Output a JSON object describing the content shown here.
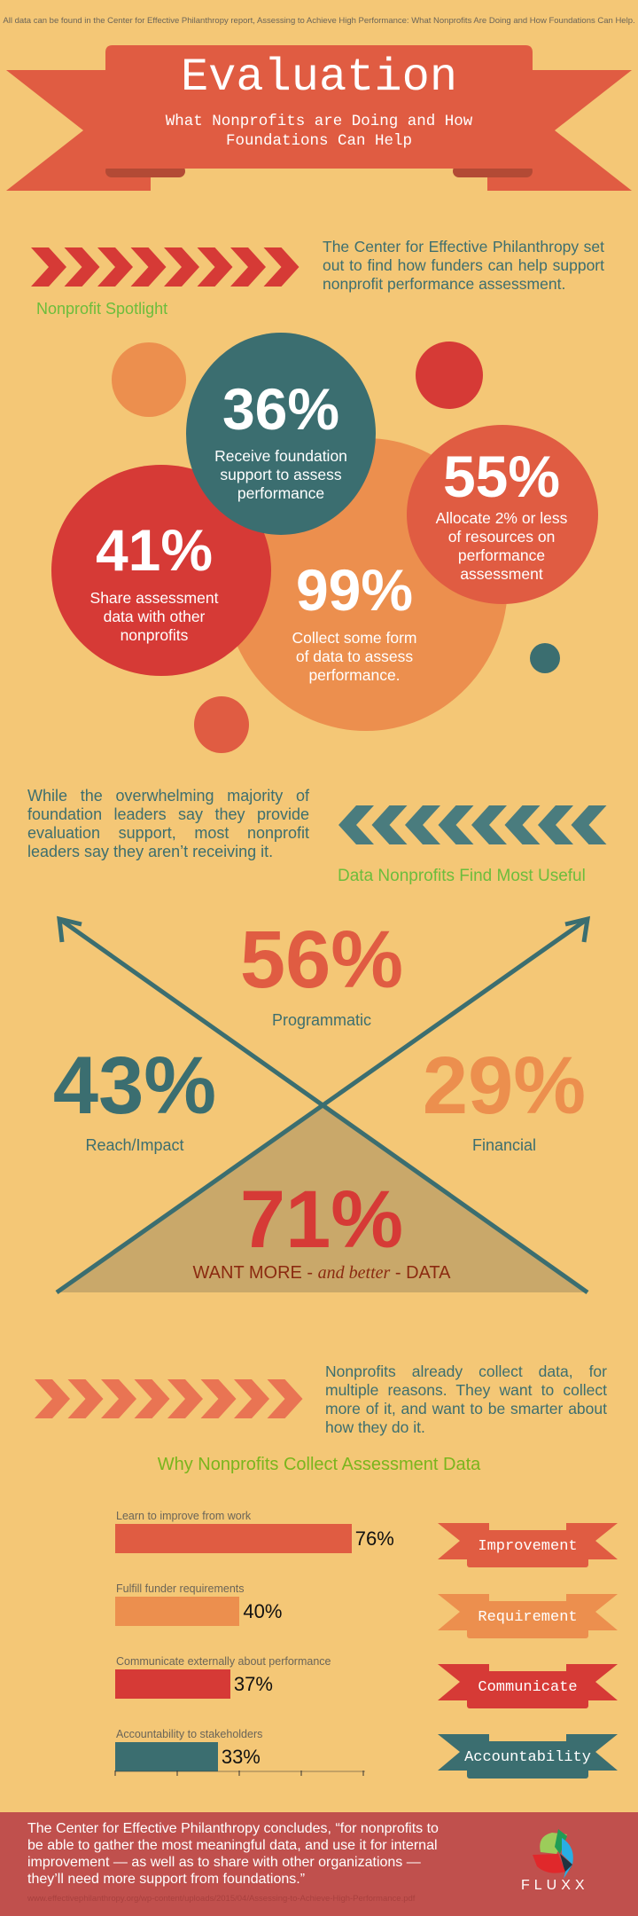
{
  "header": {
    "source_note": "All data can be found in the Center for Effective Philanthropy report, Assessing to Achieve High Performance: What Nonprofits Are Doing and How Foundations Can Help.",
    "title": "Evaluation",
    "subtitle_line1": "What Nonprofits are Doing and How",
    "subtitle_line2": "Foundations Can Help"
  },
  "spotlight": {
    "intro": "The Center for Effective Philanthropy set out to find how funders can help support nonprofit performance assessment.",
    "heading": "Nonprofit Spotlight",
    "stats": [
      {
        "value": "36%",
        "lines": [
          "Receive foundation",
          "support to assess",
          "performance"
        ]
      },
      {
        "value": "41%",
        "lines": [
          "Share assessment",
          "data with other",
          "nonprofits"
        ]
      },
      {
        "value": "99%",
        "lines": [
          "Collect some form",
          "of data to assess",
          "performance."
        ]
      },
      {
        "value": "55%",
        "lines": [
          "Allocate 2% or less",
          "of resources on",
          "performance",
          "assessment"
        ]
      }
    ]
  },
  "useful": {
    "intro": "While the overwhelming majority of foundation leaders say they provide evaluation support, most nonprofit leaders say they aren’t receiving it.",
    "heading": "Data Nonprofits Find Most Useful",
    "items": [
      {
        "value": "56%",
        "label": "Programmatic"
      },
      {
        "value": "43%",
        "label": "Reach/Impact"
      },
      {
        "value": "29%",
        "label": "Financial"
      }
    ],
    "want_value": "71%",
    "want_a": "WANT MORE",
    "want_b": " - ",
    "want_c": "and better",
    "want_d": " - DATA"
  },
  "collect": {
    "intro": "Nonprofits already collect data, for multiple reasons. They want to collect more of it, and want to be smarter about how they do it.",
    "heading": "Why Nonprofits Collect Assessment Data",
    "bars": [
      {
        "label": "Learn to improve from work",
        "value": 76,
        "display": "76%",
        "color": "#e05c42",
        "tag": "Improvement"
      },
      {
        "label": "Fulfill funder requirements",
        "value": 40,
        "display": "40%",
        "color": "#ec8f4e",
        "tag": "Requirement"
      },
      {
        "label": "Communicate externally about performance",
        "value": 37,
        "display": "37%",
        "color": "#d63a36",
        "tag": "Communicate"
      },
      {
        "label": "Accountability to stakeholders",
        "value": 33,
        "display": "33%",
        "color": "#3b6e70",
        "tag": "Accountability"
      }
    ]
  },
  "footer": {
    "quote": "The Center for Effective Philanthropy concludes, “for nonprofits to be able to gather the most meaningful data, and use it for internal improvement — as well as to share with other organizations — they’ll need more support from foundations.”",
    "url": "www.effectivephilanthropy.org/wp-content/uploads/2015/04/Assessing-to-Achieve-High-Performance.pdf",
    "logo_text": "FLUXX"
  },
  "colors": {
    "background": "#f4c776",
    "red_orange": "#e05c42",
    "orange": "#ec8f4e",
    "red": "#d63a36",
    "teal": "#3b6e70",
    "green": "#6cbd3c",
    "footer": "#c0504d"
  }
}
